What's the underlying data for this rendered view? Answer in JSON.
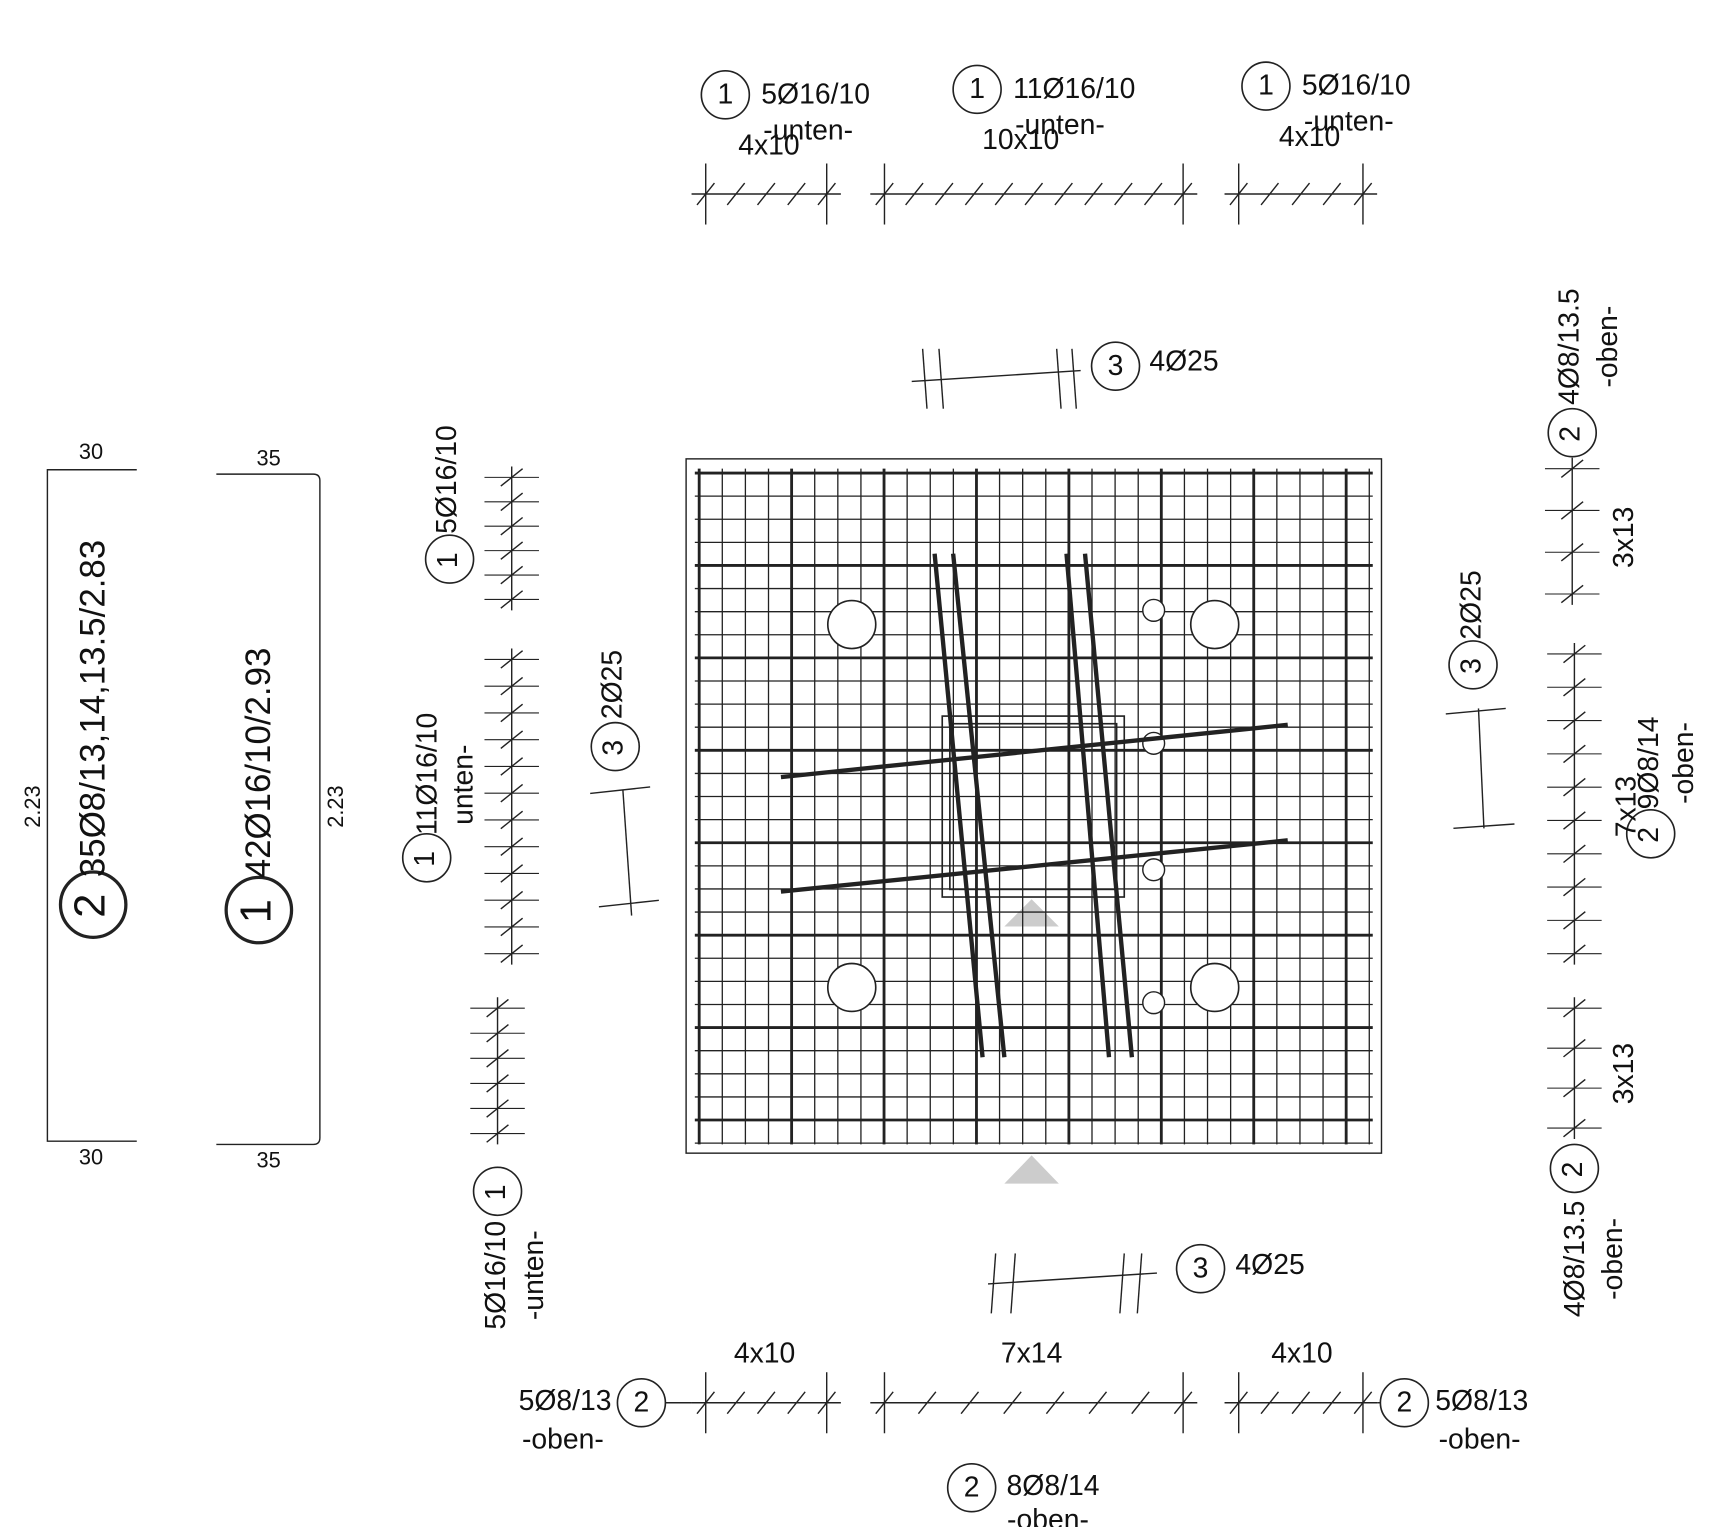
{
  "top": [
    {
      "mark": "1",
      "bars": "5Ø16/10",
      "layer": "-unten-",
      "spacing": "4x10"
    },
    {
      "mark": "1",
      "bars": "11Ø16/10",
      "layer": "-unten-",
      "spacing": "10x10"
    },
    {
      "mark": "1",
      "bars": "5Ø16/10",
      "layer": "-unten-",
      "spacing": "4x10"
    }
  ],
  "bars25": [
    {
      "mark": "3",
      "bars": "4Ø25"
    },
    {
      "mark": "3",
      "bars": "2Ø25"
    },
    {
      "mark": "3",
      "bars": "2Ø25"
    },
    {
      "mark": "3",
      "bars": "4Ø25"
    }
  ],
  "left": [
    {
      "mark": "1",
      "bars": "5Ø16/10"
    },
    {
      "mark": "1",
      "bars": "11Ø16/10",
      "layer": "unten-"
    },
    {
      "mark": "1",
      "bars": "5Ø16/10",
      "layer": "-unten-"
    }
  ],
  "right": {
    "top": {
      "mark": "2",
      "bars": "4Ø8/13.5",
      "layer": "-oben-"
    },
    "spacings": [
      "3x13",
      "7x13",
      "3x13"
    ],
    "middle": {
      "mark": "2",
      "bars": "9Ø8/14",
      "layer": "-oben-"
    },
    "bottom": {
      "mark": "2",
      "bars": "4Ø8/13.5",
      "layer": "-oben-"
    }
  },
  "bottom": {
    "spacings": [
      "4x10",
      "7x14",
      "4x10"
    ],
    "left": {
      "mark": "2",
      "bars": "5Ø8/13",
      "layer": "-oben-"
    },
    "right": {
      "mark": "2",
      "bars": "5Ø8/13",
      "layer": "-oben-"
    },
    "center": {
      "mark": "2",
      "bars": "8Ø8/14",
      "layer": "-oben-"
    }
  },
  "shapes": [
    {
      "mark": "2",
      "label": "35Ø8/13,14,13.5/2.83",
      "top": "30",
      "bottom": "30",
      "height": "2.23"
    },
    {
      "mark": "1",
      "label": "42Ø16/10/2.93",
      "top": "35",
      "bottom": "35",
      "height": "2.23"
    }
  ]
}
